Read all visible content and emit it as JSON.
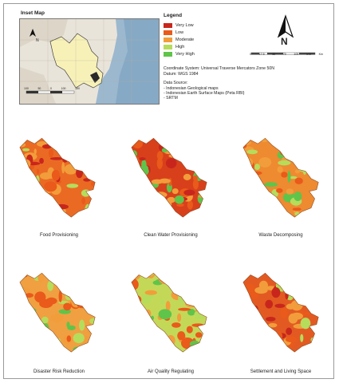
{
  "inset": {
    "title": "Inset Map",
    "lon_labels": [
      "100",
      "50",
      "0",
      "100",
      "150"
    ],
    "north_label": "N"
  },
  "legend": {
    "title": "Legend",
    "items": [
      {
        "label": "Very Low",
        "color": "#c8261c"
      },
      {
        "label": "Low",
        "color": "#ea5a1a"
      },
      {
        "label": "Moderate",
        "color": "#f29d3b"
      },
      {
        "label": "High",
        "color": "#b6dc5c"
      },
      {
        "label": "Very High",
        "color": "#5fc44a"
      }
    ]
  },
  "north_arrow": {
    "label": "N"
  },
  "scale_bar": {
    "labels": [
      "0",
      "17.5",
      "35",
      "70",
      "105",
      "140"
    ],
    "unit": "Km"
  },
  "coordinate_system": "Coordinate System: Universal Traverse Mercators Zone 50N",
  "datum": "Datum: WGS 1984",
  "data_source": {
    "title": "Data Source:",
    "items": [
      "- Indonesian Geological maps",
      "- Indonesian Earth Surface Maps (Peta RBI)",
      "- SRTM"
    ]
  },
  "maps": [
    {
      "caption": "Food Provisioning",
      "palette": [
        "#ea5a1a",
        "#f29d3b",
        "#c8261c",
        "#b6dc5c"
      ],
      "base": "#ea6a24"
    },
    {
      "caption": "Clean Water Provisioning",
      "palette": [
        "#c8261c",
        "#ea5a1a",
        "#5fc44a",
        "#f29d3b"
      ],
      "base": "#d8401c"
    },
    {
      "caption": "Waste Decomposing",
      "palette": [
        "#f29d3b",
        "#ea5a1a",
        "#5fc44a",
        "#b6dc5c"
      ],
      "base": "#ee8a30"
    },
    {
      "caption": "Disaster Risk Reduction",
      "palette": [
        "#f29d3b",
        "#b6dc5c",
        "#ea5a1a",
        "#5fc44a"
      ],
      "base": "#f0a040"
    },
    {
      "caption": "Air Quality Regulating",
      "palette": [
        "#b6dc5c",
        "#f29d3b",
        "#5fc44a",
        "#ea5a1a"
      ],
      "base": "#c4d858"
    },
    {
      "caption": "Settlement and Living Space",
      "palette": [
        "#ea5a1a",
        "#c8261c",
        "#f29d3b",
        "#b6dc5c"
      ],
      "base": "#e25a22"
    }
  ]
}
